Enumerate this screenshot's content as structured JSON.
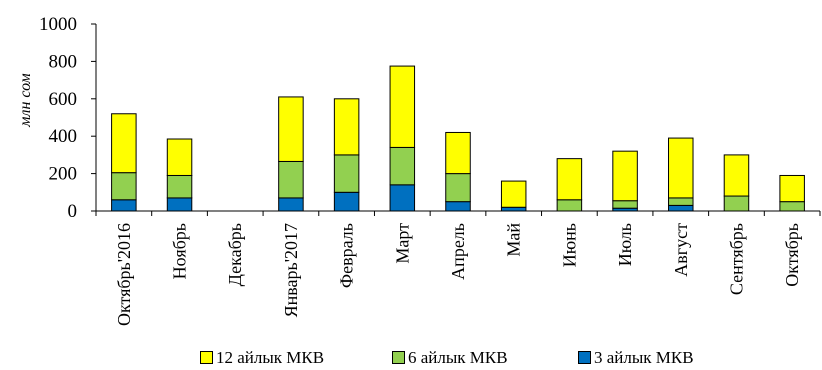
{
  "chart_data": {
    "type": "bar",
    "stacked": true,
    "categories": [
      "Октябрь'2016",
      "Ноябрь",
      "Декабрь",
      "Январь'2017",
      "Февраль",
      "Март",
      "Апрель",
      "Май",
      "Июнь",
      "Июль",
      "Август",
      "Сентябрь",
      "Октябрь"
    ],
    "series": [
      {
        "name": "3 айлык МКВ",
        "color": "#0070C0",
        "values": [
          60,
          70,
          0,
          70,
          100,
          140,
          50,
          20,
          0,
          15,
          30,
          0,
          0
        ]
      },
      {
        "name": "6 айлык МКВ",
        "color": "#92D050",
        "values": [
          145,
          120,
          0,
          195,
          200,
          200,
          150,
          0,
          60,
          40,
          40,
          80,
          50
        ]
      },
      {
        "name": "12 айлык МКВ",
        "color": "#FFFF00",
        "values": [
          315,
          195,
          0,
          345,
          300,
          435,
          220,
          140,
          220,
          265,
          320,
          220,
          140
        ]
      }
    ],
    "ylabel": "млн сом",
    "ylim": [
      0,
      1000
    ],
    "yticks": [
      "0",
      "200",
      "400",
      "600",
      "800",
      "1000"
    ],
    "grid": false,
    "legend_position": "bottom"
  }
}
